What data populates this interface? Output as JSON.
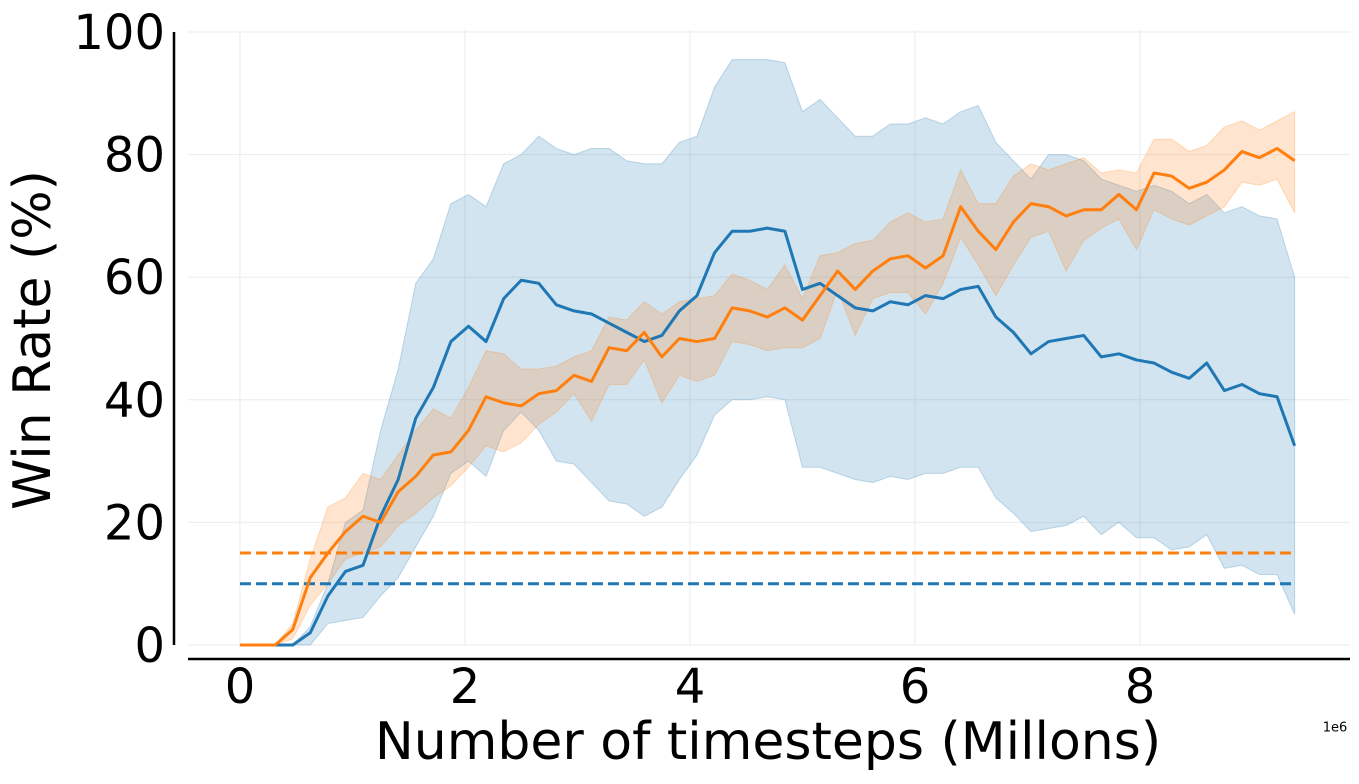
{
  "chart_data": {
    "type": "line",
    "xlabel": "Number of timesteps (Millons)",
    "ylabel": "Win Rate (%)",
    "x_offset_label": "1e6",
    "x": [
      0,
      0.15625,
      0.3125,
      0.46875,
      0.625,
      0.78125,
      0.9375,
      1.09375,
      1.25,
      1.40625,
      1.5625,
      1.71875,
      1.875,
      2.03125,
      2.1875,
      2.34375,
      2.5,
      2.65625,
      2.8125,
      2.96875,
      3.125,
      3.28125,
      3.4375,
      3.59375,
      3.75,
      3.90625,
      4.0625,
      4.21875,
      4.375,
      4.53125,
      4.6875,
      4.84375,
      5,
      5.15625,
      5.3125,
      5.46875,
      5.625,
      5.78125,
      5.9375,
      6.09375,
      6.25,
      6.40625,
      6.5625,
      6.71875,
      6.875,
      7.03125,
      7.1875,
      7.34375,
      7.5,
      7.65625,
      7.8125,
      7.96875,
      8.125,
      8.28125,
      8.4375,
      8.59375,
      8.75,
      8.90625,
      9.0625,
      9.21875,
      9.375
    ],
    "series": [
      {
        "color": "#1f77b4",
        "values": [
          0,
          0,
          0,
          0,
          2,
          8,
          12,
          13,
          21,
          27,
          37,
          42,
          49.5,
          52,
          49.5,
          56.5,
          59.5,
          59,
          55.5,
          54.5,
          54,
          52.5,
          51,
          49.5,
          50.5,
          54.5,
          57,
          64,
          67.5,
          67.5,
          68,
          67.5,
          58,
          59,
          57,
          55,
          54.5,
          56,
          55.5,
          57,
          56.5,
          58,
          58.5,
          53.5,
          51,
          47.5,
          49.5,
          50,
          50.5,
          47,
          47.5,
          46.5,
          46,
          44.5,
          43.5,
          46,
          41.5,
          42.5,
          41,
          40.5,
          32.5
        ],
        "upper": [
          0,
          0,
          0,
          0,
          3,
          10,
          20,
          22,
          35,
          45,
          59,
          63,
          72,
          73.5,
          71.5,
          78.5,
          80,
          83,
          81,
          80,
          81,
          81,
          79,
          78.5,
          78.5,
          82,
          83,
          91,
          95.5,
          95.5,
          95.5,
          95,
          87,
          89,
          86,
          83,
          83,
          85,
          85,
          86,
          85,
          87,
          88,
          82,
          79,
          76,
          80,
          80,
          79,
          76,
          75,
          74,
          75,
          74,
          72,
          73.5,
          70.5,
          71.5,
          70,
          69.5,
          60
        ],
        "lower": [
          0,
          0,
          0,
          0,
          0,
          3.5,
          4,
          4.5,
          8,
          11,
          16,
          21,
          28,
          30,
          27.5,
          35,
          38,
          35,
          30,
          29.5,
          26.5,
          23.5,
          23,
          21,
          22.5,
          27,
          31,
          37.5,
          40,
          40,
          40.5,
          40,
          29,
          29,
          28,
          27,
          26.5,
          27.5,
          27,
          28,
          28,
          29,
          29,
          24,
          21.5,
          18.5,
          19,
          19.5,
          21,
          18,
          20,
          17.5,
          17.5,
          15.5,
          16,
          18,
          12.5,
          13,
          11.5,
          11.5,
          5
        ]
      },
      {
        "color": "#ff7f0e",
        "values": [
          0,
          0,
          0,
          2.5,
          11,
          15,
          18.5,
          21,
          20,
          25,
          27.5,
          31,
          31.5,
          35,
          40.5,
          39.5,
          39,
          41,
          41.5,
          44,
          43,
          48.5,
          48,
          51,
          47,
          50,
          49.5,
          50,
          55,
          54.5,
          53.5,
          55,
          53,
          57,
          61,
          58,
          61,
          63,
          63.5,
          61.5,
          63.5,
          71.5,
          67.5,
          64.5,
          69,
          72,
          71.5,
          70,
          71,
          71,
          73.5,
          71,
          77,
          76.5,
          74.5,
          75.5,
          77.5,
          80.5,
          79.5,
          81,
          79
        ],
        "upper": [
          0,
          0,
          0,
          3.5,
          14,
          22.5,
          24,
          28,
          27,
          31,
          35,
          38.5,
          37,
          42,
          48,
          47.5,
          45,
          45,
          45.5,
          47,
          48,
          53.5,
          53,
          56,
          54,
          56,
          56.5,
          57,
          60.5,
          59.5,
          58,
          62,
          56.5,
          63.5,
          64,
          65.5,
          66,
          69,
          70.5,
          69,
          69.5,
          77.5,
          72,
          72,
          76.5,
          78.5,
          77.5,
          78.5,
          79.5,
          77,
          77.5,
          77,
          82.5,
          82.5,
          80.5,
          81.5,
          84.5,
          85.5,
          84,
          85.5,
          87
        ],
        "lower": [
          0,
          0,
          0,
          1,
          6.5,
          10,
          14,
          15,
          16,
          19.5,
          21.5,
          24,
          26,
          29,
          32.5,
          31.5,
          33,
          36,
          38,
          41,
          36.5,
          42.5,
          42.5,
          46.5,
          39.5,
          44,
          43,
          44,
          49.5,
          49,
          48,
          48.5,
          48.5,
          50,
          58,
          50.5,
          56.5,
          57.5,
          57.5,
          54,
          59,
          66.5,
          62,
          57,
          62,
          66.5,
          67.5,
          61,
          66,
          68,
          69.5,
          64.5,
          71,
          69.5,
          68.5,
          70,
          71.5,
          75.5,
          75,
          76,
          70.5
        ]
      }
    ],
    "hlines": [
      {
        "color": "#ff7f0e",
        "value": 15,
        "style": "dashed"
      },
      {
        "color": "#1f77b4",
        "value": 10,
        "style": "dashed"
      }
    ],
    "xlim": [
      -0.462,
      9.867
    ],
    "ylim": [
      0,
      100
    ],
    "xticks": [
      0,
      2,
      4,
      6,
      8
    ],
    "yticks": [
      0,
      20,
      40,
      60,
      80,
      100
    ],
    "grid": true
  }
}
